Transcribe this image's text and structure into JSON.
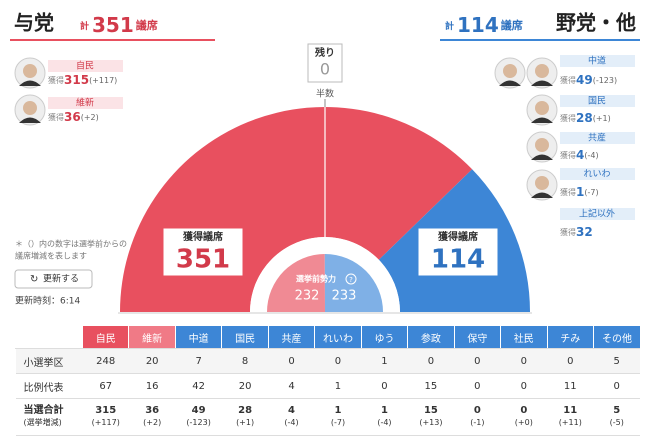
{
  "ruling": {
    "title": "与党",
    "total_label": "計",
    "total": 351,
    "unit": "議席"
  },
  "opposition": {
    "title": "野党・他",
    "total_label": "計",
    "total": 114,
    "unit": "議席"
  },
  "remaining": {
    "label": "残り",
    "value": 0
  },
  "half_label": "半数",
  "acquired_label": "獲得議席",
  "acquired_short": "獲得",
  "ruling_parties": [
    {
      "name": "自民",
      "seats": 315,
      "change": "(+117)"
    },
    {
      "name": "維新",
      "seats": 36,
      "change": "(+2)"
    }
  ],
  "opposition_parties": [
    {
      "name": "中道",
      "seats": 49,
      "change": "(-123)"
    },
    {
      "name": "国民",
      "seats": 28,
      "change": "(+1)"
    },
    {
      "name": "共産",
      "seats": 4,
      "change": "(-4)"
    },
    {
      "name": "れいわ",
      "seats": 1,
      "change": "(-7)"
    },
    {
      "name": "上記以外",
      "seats": 32
    }
  ],
  "pre_election": {
    "label": "選挙前勢力",
    "ruling": 232,
    "opposition": 233
  },
  "note": [
    "＊（）内の数字は選挙前からの",
    "議席増減を表します"
  ],
  "refresh_button": "更新する",
  "update_time": "更新時刻：6:14",
  "table": {
    "columns": [
      "自民",
      "維新",
      "中道",
      "国民",
      "共産",
      "れいわ",
      "ゆう",
      "参政",
      "保守",
      "社民",
      "チみ",
      "その他"
    ],
    "rows": [
      {
        "label": "小選挙区",
        "values": [
          248,
          20,
          7,
          8,
          0,
          0,
          1,
          0,
          0,
          0,
          0,
          5
        ]
      },
      {
        "label": "比例代表",
        "values": [
          67,
          16,
          42,
          20,
          4,
          1,
          0,
          15,
          0,
          0,
          11,
          0
        ]
      }
    ],
    "total_row": {
      "label": "当選合計",
      "sublabel": "(選挙増減)",
      "values": [
        315,
        36,
        49,
        28,
        4,
        1,
        1,
        15,
        0,
        0,
        11,
        5
      ],
      "changes": [
        "(+117)",
        "(+2)",
        "(-123)",
        "(+1)",
        "(-4)",
        "(-7)",
        "(-4)",
        "(+13)",
        "(-1)",
        "(+0)",
        "(+11)",
        "(-5)"
      ]
    }
  }
}
